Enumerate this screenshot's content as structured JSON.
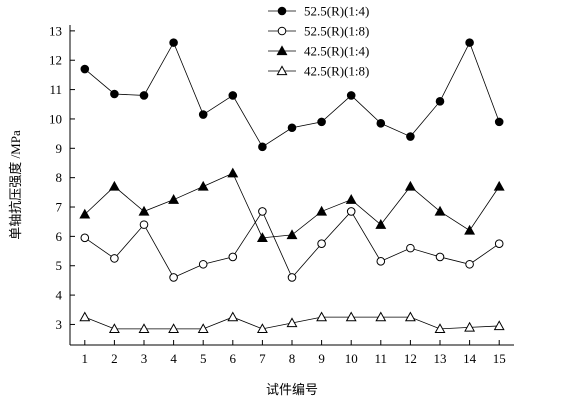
{
  "chart_data": {
    "type": "line",
    "title": "",
    "xlabel": "试件编号",
    "ylabel": "单轴抗压强度 /MPa",
    "x": [
      1,
      2,
      3,
      4,
      5,
      6,
      7,
      8,
      9,
      10,
      11,
      12,
      13,
      14,
      15
    ],
    "xlim": [
      0.5,
      15.5
    ],
    "ylim": [
      2.3,
      13.2
    ],
    "yticks": [
      3,
      4,
      5,
      6,
      7,
      8,
      9,
      10,
      11,
      12,
      13
    ],
    "grid": false,
    "legend_position": "top-right",
    "series": [
      {
        "name": "52.5(R)(1:4)",
        "marker": "filled-circle",
        "values": [
          11.7,
          10.85,
          10.8,
          12.6,
          10.15,
          10.8,
          9.05,
          9.7,
          9.9,
          10.8,
          9.85,
          9.4,
          10.6,
          12.6,
          9.9
        ]
      },
      {
        "name": "52.5(R)(1:8)",
        "marker": "open-circle",
        "values": [
          5.95,
          5.25,
          6.4,
          4.6,
          5.05,
          5.3,
          6.85,
          4.6,
          5.75,
          6.85,
          5.15,
          5.6,
          5.3,
          5.05,
          5.75
        ]
      },
      {
        "name": "42.5(R)(1:4)",
        "marker": "filled-triangle",
        "values": [
          6.75,
          7.7,
          6.85,
          7.25,
          7.7,
          8.15,
          5.95,
          6.05,
          6.85,
          7.25,
          6.4,
          7.7,
          6.85,
          6.2,
          7.7
        ]
      },
      {
        "name": "42.5(R)(1:8)",
        "marker": "open-triangle",
        "values": [
          3.25,
          2.85,
          2.85,
          2.85,
          2.85,
          3.25,
          2.85,
          3.05,
          3.25,
          3.25,
          3.25,
          3.25,
          2.85,
          2.9,
          2.95
        ]
      }
    ]
  }
}
